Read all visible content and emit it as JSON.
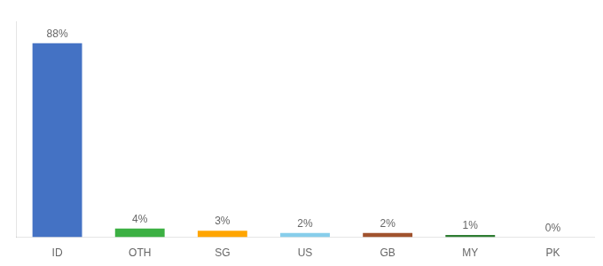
{
  "chart_data": {
    "type": "bar",
    "categories": [
      "ID",
      "OTH",
      "SG",
      "US",
      "GB",
      "MY",
      "PK"
    ],
    "values": [
      88,
      4,
      3,
      2,
      2,
      1,
      0
    ],
    "value_labels": [
      "88%",
      "4%",
      "3%",
      "2%",
      "2%",
      "1%",
      "0%"
    ],
    "colors": [
      "#4472C4",
      "#3CB043",
      "#FFA500",
      "#87CEEB",
      "#A0522D",
      "#2E7D32",
      "#AAAAAA"
    ],
    "ylim": [
      0,
      98
    ],
    "grid": false,
    "tick_labels": "x",
    "data_labels": true
  }
}
